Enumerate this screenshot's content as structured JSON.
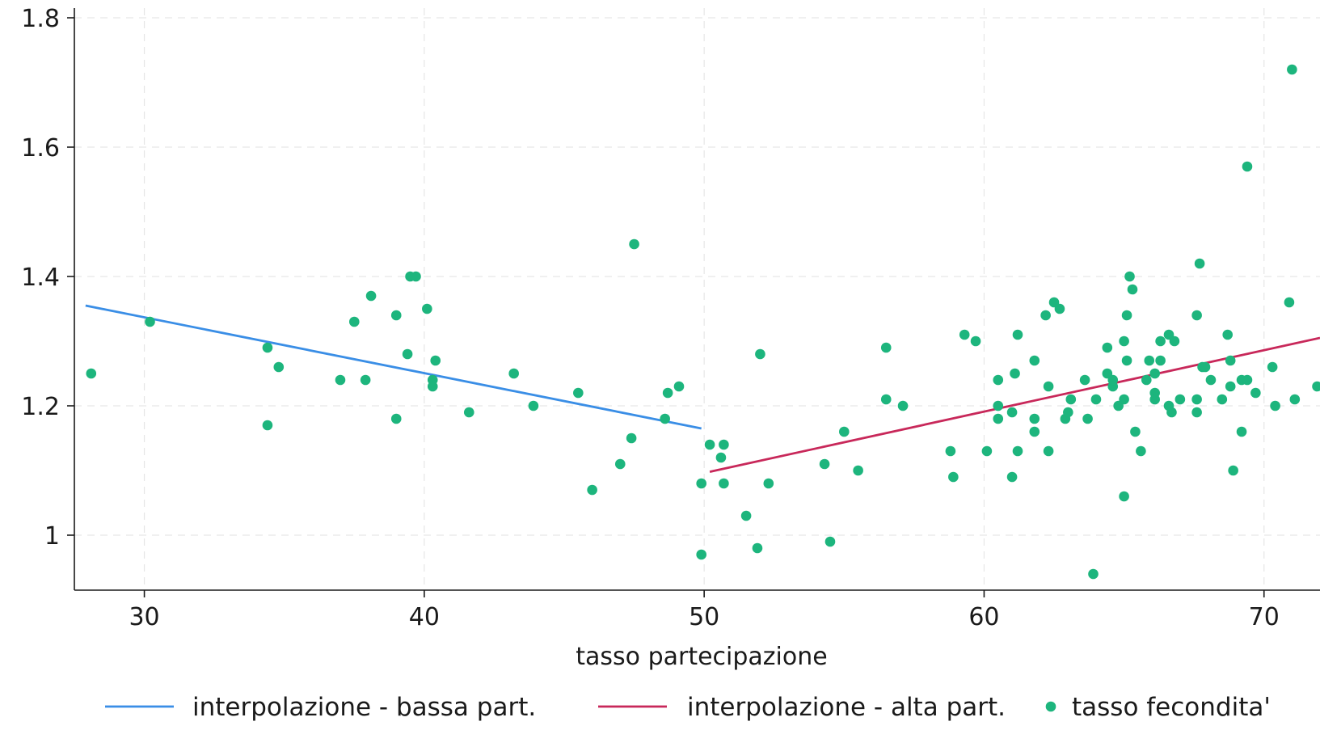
{
  "chart_data": {
    "type": "scatter",
    "title": "",
    "xlabel": "tasso partecipazione",
    "ylabel": "",
    "xlim": [
      27.5,
      72
    ],
    "ylim": [
      0.915,
      1.815
    ],
    "xticks": [
      30,
      40,
      50,
      60,
      70
    ],
    "yticks": [
      1,
      1.2,
      1.4,
      1.6,
      1.8
    ],
    "xtick_labels": [
      "30",
      "40",
      "50",
      "60",
      "70"
    ],
    "ytick_labels": [
      "1",
      "1.2",
      "1.4",
      "1.6",
      "1.8"
    ],
    "grid": true,
    "legend_position": "bottom",
    "series": [
      {
        "name": "interpolazione - bassa part.",
        "kind": "line",
        "color": "#3a8ee6",
        "x": [
          27.9,
          49.9
        ],
        "y": [
          1.355,
          1.165
        ]
      },
      {
        "name": "interpolazione - alta part.",
        "kind": "line",
        "color": "#c8285a",
        "x": [
          50.2,
          72
        ],
        "y": [
          1.098,
          1.305
        ]
      },
      {
        "name": "tasso fecondita'",
        "kind": "scatter",
        "color": "#1db57d",
        "points": [
          [
            28.1,
            1.25
          ],
          [
            30.2,
            1.33
          ],
          [
            34.4,
            1.29
          ],
          [
            34.4,
            1.17
          ],
          [
            34.8,
            1.26
          ],
          [
            37.0,
            1.24
          ],
          [
            37.5,
            1.33
          ],
          [
            37.9,
            1.24
          ],
          [
            38.1,
            1.37
          ],
          [
            39.0,
            1.34
          ],
          [
            39.0,
            1.18
          ],
          [
            39.4,
            1.28
          ],
          [
            39.5,
            1.4
          ],
          [
            39.7,
            1.4
          ],
          [
            40.1,
            1.35
          ],
          [
            40.3,
            1.24
          ],
          [
            40.3,
            1.23
          ],
          [
            40.4,
            1.27
          ],
          [
            41.6,
            1.19
          ],
          [
            43.2,
            1.25
          ],
          [
            43.9,
            1.2
          ],
          [
            45.5,
            1.22
          ],
          [
            46.0,
            1.07
          ],
          [
            47.0,
            1.11
          ],
          [
            47.4,
            1.15
          ],
          [
            47.5,
            1.45
          ],
          [
            48.6,
            1.18
          ],
          [
            48.7,
            1.22
          ],
          [
            49.1,
            1.23
          ],
          [
            49.9,
            0.97
          ],
          [
            49.9,
            1.08
          ],
          [
            50.2,
            1.14
          ],
          [
            50.6,
            1.12
          ],
          [
            50.7,
            1.14
          ],
          [
            50.7,
            1.08
          ],
          [
            51.5,
            1.03
          ],
          [
            51.9,
            0.98
          ],
          [
            52.0,
            1.28
          ],
          [
            52.3,
            1.08
          ],
          [
            54.3,
            1.11
          ],
          [
            54.5,
            0.99
          ],
          [
            55.0,
            1.16
          ],
          [
            55.5,
            1.1
          ],
          [
            56.5,
            1.29
          ],
          [
            56.5,
            1.21
          ],
          [
            57.1,
            1.2
          ],
          [
            58.8,
            1.13
          ],
          [
            58.9,
            1.09
          ],
          [
            59.3,
            1.31
          ],
          [
            59.7,
            1.3
          ],
          [
            60.1,
            1.13
          ],
          [
            60.5,
            1.24
          ],
          [
            60.5,
            1.2
          ],
          [
            60.5,
            1.18
          ],
          [
            61.0,
            1.09
          ],
          [
            61.0,
            1.19
          ],
          [
            61.1,
            1.25
          ],
          [
            61.2,
            1.31
          ],
          [
            61.2,
            1.13
          ],
          [
            61.8,
            1.27
          ],
          [
            61.8,
            1.18
          ],
          [
            61.8,
            1.16
          ],
          [
            62.2,
            1.34
          ],
          [
            62.3,
            1.23
          ],
          [
            62.3,
            1.13
          ],
          [
            62.5,
            1.36
          ],
          [
            62.7,
            1.35
          ],
          [
            62.9,
            1.18
          ],
          [
            63.0,
            1.19
          ],
          [
            63.1,
            1.21
          ],
          [
            63.6,
            1.24
          ],
          [
            63.7,
            1.18
          ],
          [
            63.9,
            0.94
          ],
          [
            64.0,
            1.21
          ],
          [
            64.4,
            1.29
          ],
          [
            64.4,
            1.25
          ],
          [
            64.6,
            1.23
          ],
          [
            64.6,
            1.24
          ],
          [
            64.8,
            1.2
          ],
          [
            65.0,
            1.3
          ],
          [
            65.0,
            1.21
          ],
          [
            65.0,
            1.06
          ],
          [
            65.1,
            1.34
          ],
          [
            65.1,
            1.27
          ],
          [
            65.2,
            1.4
          ],
          [
            65.3,
            1.38
          ],
          [
            65.4,
            1.16
          ],
          [
            65.6,
            1.13
          ],
          [
            65.8,
            1.24
          ],
          [
            65.9,
            1.27
          ],
          [
            66.1,
            1.25
          ],
          [
            66.1,
            1.22
          ],
          [
            66.1,
            1.21
          ],
          [
            66.3,
            1.3
          ],
          [
            66.3,
            1.27
          ],
          [
            66.6,
            1.2
          ],
          [
            66.6,
            1.31
          ],
          [
            66.7,
            1.19
          ],
          [
            66.8,
            1.3
          ],
          [
            67.0,
            1.21
          ],
          [
            67.6,
            1.34
          ],
          [
            67.6,
            1.21
          ],
          [
            67.6,
            1.19
          ],
          [
            67.7,
            1.42
          ],
          [
            67.8,
            1.26
          ],
          [
            67.9,
            1.26
          ],
          [
            68.1,
            1.24
          ],
          [
            68.5,
            1.21
          ],
          [
            68.7,
            1.31
          ],
          [
            68.8,
            1.27
          ],
          [
            68.8,
            1.23
          ],
          [
            68.9,
            1.1
          ],
          [
            69.2,
            1.16
          ],
          [
            69.2,
            1.24
          ],
          [
            69.4,
            1.24
          ],
          [
            69.4,
            1.57
          ],
          [
            69.7,
            1.22
          ],
          [
            70.3,
            1.26
          ],
          [
            70.4,
            1.2
          ],
          [
            70.9,
            1.36
          ],
          [
            71.0,
            1.72
          ],
          [
            71.1,
            1.21
          ],
          [
            71.9,
            1.23
          ]
        ]
      }
    ]
  }
}
